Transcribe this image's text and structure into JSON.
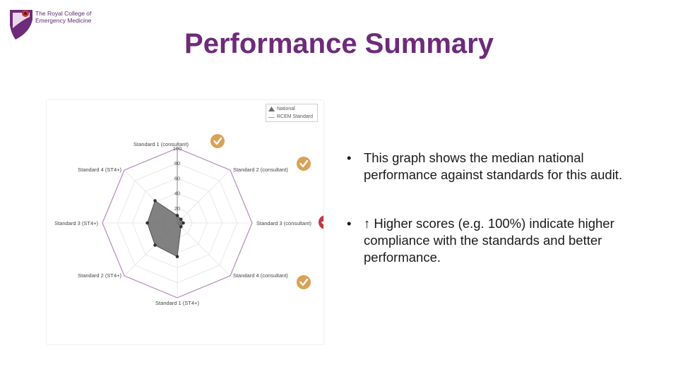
{
  "logo": {
    "line1": "The Royal College of",
    "line2": "Emergency Medicine"
  },
  "title": "Performance Summary",
  "bullets": [
    "This graph shows the median national performance against standards for this audit.",
    "↑ Higher scores (e.g. 100%) indicate higher compliance with the standards and better performance."
  ],
  "bullet_char": "•",
  "colors": {
    "title": "#6e2b7a",
    "national_fill": "#6b6b6b",
    "rcem_line": "#b48ab8",
    "check_orange": "#d9a257",
    "check_red": "#c0393f"
  },
  "chart_data": {
    "type": "radar",
    "categories": [
      "Standard 1 (consultant)",
      "Standard 2 (consultant)",
      "Standard 3 (consultant)",
      "Standard 4 (consultant)",
      "Standard 1 (ST4+)",
      "Standard 2 (ST4+)",
      "Standard 3 (ST4+)",
      "Standard 4 (ST4+)"
    ],
    "ticks": [
      "100",
      "80",
      "60",
      "40",
      "20",
      "0"
    ],
    "rmax": 100,
    "legend": [
      "National",
      "RCEM Standard"
    ],
    "legend_position": "top-right",
    "series": [
      {
        "name": "National",
        "values": [
          10,
          7,
          8,
          7,
          45,
          42,
          40,
          42
        ]
      },
      {
        "name": "RCEM Standard",
        "values": [
          100,
          100,
          100,
          100,
          100,
          100,
          100,
          100
        ]
      }
    ],
    "status_icons": [
      {
        "category": "Standard 1 (consultant)",
        "status": "met"
      },
      {
        "category": "Standard 2 (consultant)",
        "status": "met"
      },
      {
        "category": "Standard 3 (consultant)",
        "status": "not-met"
      },
      {
        "category": "Standard 4 (consultant)",
        "status": "met"
      }
    ]
  }
}
